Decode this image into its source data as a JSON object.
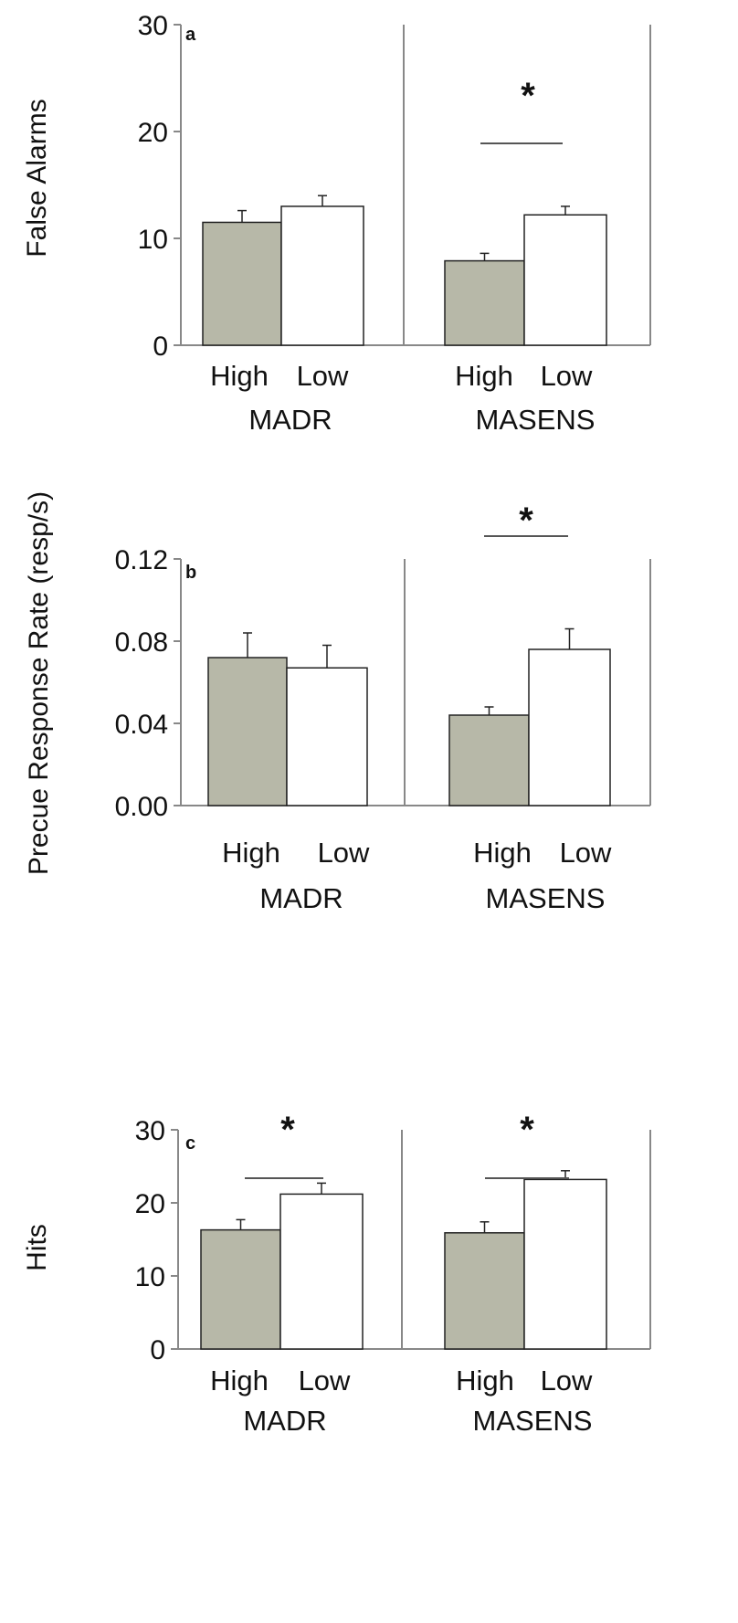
{
  "colors": {
    "high_fill": "#b7b8a8",
    "low_fill": "#ffffff",
    "stroke": "#222222",
    "axis": "#888888"
  },
  "chart_data": [
    {
      "type": "bar",
      "panel_label": "a",
      "ylabel": "False Alarms",
      "ylim": [
        0,
        30
      ],
      "yticks": [
        "0",
        "10",
        "20",
        "30"
      ],
      "groups": [
        {
          "name": "MADR",
          "categories": [
            "High",
            "Low"
          ],
          "values": [
            11.5,
            13
          ],
          "errors": [
            1.1,
            1.0
          ]
        },
        {
          "name": "MASENS",
          "categories": [
            "High",
            "Low"
          ],
          "values": [
            7.9,
            12.2
          ],
          "errors": [
            0.7,
            0.8
          ]
        }
      ],
      "significance": [
        {
          "group": 1,
          "label": "*"
        }
      ]
    },
    {
      "type": "bar",
      "panel_label": "b",
      "ylabel": "Precue Response Rate (resp/s)",
      "ylim": [
        0,
        0.12
      ],
      "yticks": [
        "0.00",
        "0.04",
        "0.08",
        "0.12"
      ],
      "groups": [
        {
          "name": "MADR",
          "categories": [
            "High",
            "Low"
          ],
          "values": [
            0.072,
            0.067
          ],
          "errors": [
            0.012,
            0.011
          ]
        },
        {
          "name": "MASENS",
          "categories": [
            "High",
            "Low"
          ],
          "values": [
            0.044,
            0.076
          ],
          "errors": [
            0.004,
            0.01
          ]
        }
      ],
      "significance": [
        {
          "group": 1,
          "label": "*"
        }
      ]
    },
    {
      "type": "bar",
      "panel_label": "c",
      "ylabel": "Hits",
      "ylim": [
        0,
        30
      ],
      "yticks": [
        "0",
        "10",
        "20",
        "30"
      ],
      "groups": [
        {
          "name": "MADR",
          "categories": [
            "High",
            "Low"
          ],
          "values": [
            16.3,
            21.2
          ],
          "errors": [
            1.4,
            1.5
          ]
        },
        {
          "name": "MASENS",
          "categories": [
            "High",
            "Low"
          ],
          "values": [
            15.9,
            23.2
          ],
          "errors": [
            1.5,
            1.2
          ]
        }
      ],
      "significance": [
        {
          "group": 0,
          "label": "*"
        },
        {
          "group": 1,
          "label": "*"
        }
      ]
    }
  ]
}
